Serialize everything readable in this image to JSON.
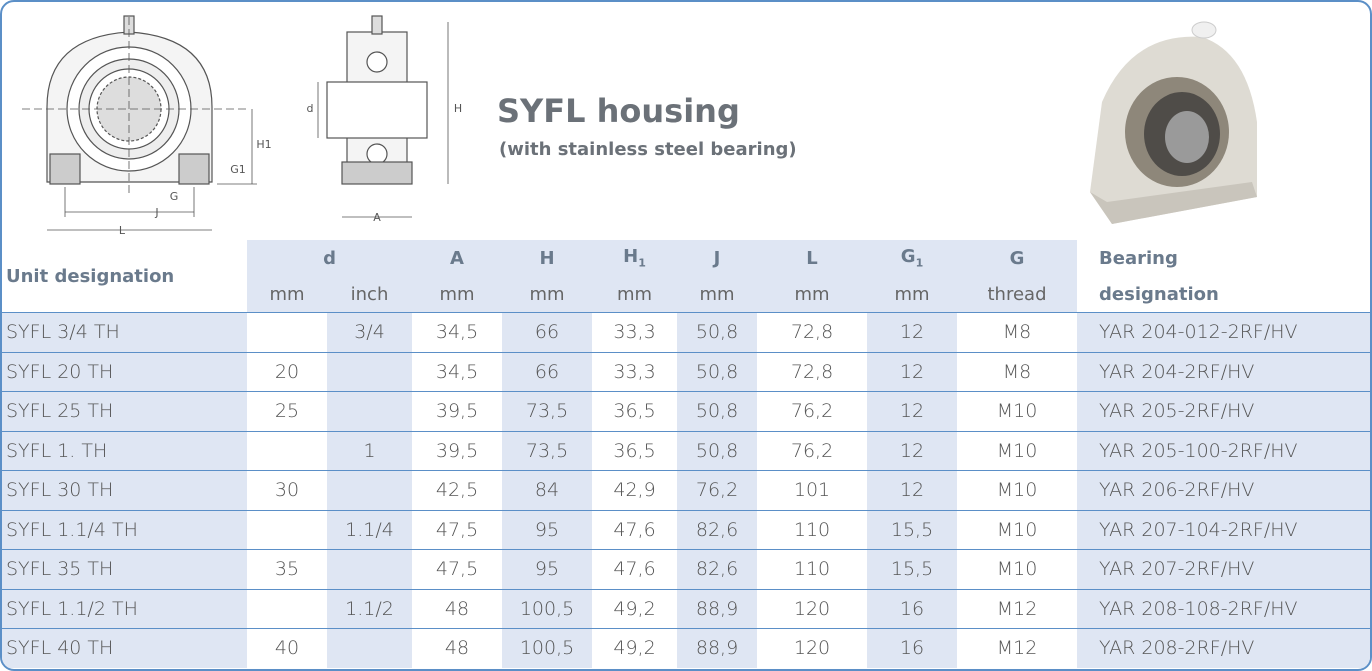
{
  "header": {
    "title": "SYFL housing",
    "subtitle": "(with stainless steel bearing)"
  },
  "diagram": {
    "front_labels": [
      "H1",
      "G1",
      "G",
      "J",
      "L"
    ],
    "side_labels": [
      "d",
      "H",
      "A"
    ]
  },
  "table": {
    "header": {
      "unit": "Unit designation",
      "d": "d",
      "d_units": [
        "mm",
        "inch"
      ],
      "columns": [
        {
          "symbol": "A",
          "unit": "mm"
        },
        {
          "symbol": "H",
          "unit": "mm"
        },
        {
          "symbol": "H",
          "subscript": "1",
          "unit": "mm"
        },
        {
          "symbol": "J",
          "unit": "mm"
        },
        {
          "symbol": "L",
          "unit": "mm"
        },
        {
          "symbol": "G",
          "subscript": "1",
          "unit": "mm"
        },
        {
          "symbol": "G",
          "unit": "thread"
        }
      ],
      "bearing": [
        "Bearing",
        "designation"
      ]
    },
    "rows": [
      [
        "SYFL 3/4 TH",
        null,
        "3/4",
        "34,5",
        "66",
        "33,3",
        "50,8",
        "72,8",
        "12",
        "M8",
        "YAR 204-012-2RF/HV"
      ],
      [
        "SYFL 20 TH",
        "20",
        null,
        "34,5",
        "66",
        "33,3",
        "50,8",
        "72,8",
        "12",
        "M8",
        "YAR 204-2RF/HV"
      ],
      [
        "SYFL 25 TH",
        "25",
        null,
        "39,5",
        "73,5",
        "36,5",
        "50,8",
        "76,2",
        "12",
        "M10",
        "YAR 205-2RF/HV"
      ],
      [
        "SYFL 1. TH",
        null,
        "1",
        "39,5",
        "73,5",
        "36,5",
        "50,8",
        "76,2",
        "12",
        "M10",
        "YAR 205-100-2RF/HV"
      ],
      [
        "SYFL 30 TH",
        "30",
        null,
        "42,5",
        "84",
        "42,9",
        "76,2",
        "101",
        "12",
        "M10",
        "YAR 206-2RF/HV"
      ],
      [
        "SYFL 1.1/4 TH",
        null,
        "1.1/4",
        "47,5",
        "95",
        "47,6",
        "82,6",
        "110",
        "15,5",
        "M10",
        "YAR 207-104-2RF/HV"
      ],
      [
        "SYFL 35 TH",
        "35",
        null,
        "47,5",
        "95",
        "47,6",
        "82,6",
        "110",
        "15,5",
        "M10",
        "YAR 207-2RF/HV"
      ],
      [
        "SYFL 1.1/2 TH",
        null,
        "1.1/2",
        "48",
        "100,5",
        "49,2",
        "88,9",
        "120",
        "16",
        "M12",
        "YAR 208-108-2RF/HV"
      ],
      [
        "SYFL 40 TH",
        "40",
        null,
        "48",
        "100,5",
        "49,2",
        "88,9",
        "120",
        "16",
        "M12",
        "YAR 208-2RF/HV"
      ]
    ]
  }
}
